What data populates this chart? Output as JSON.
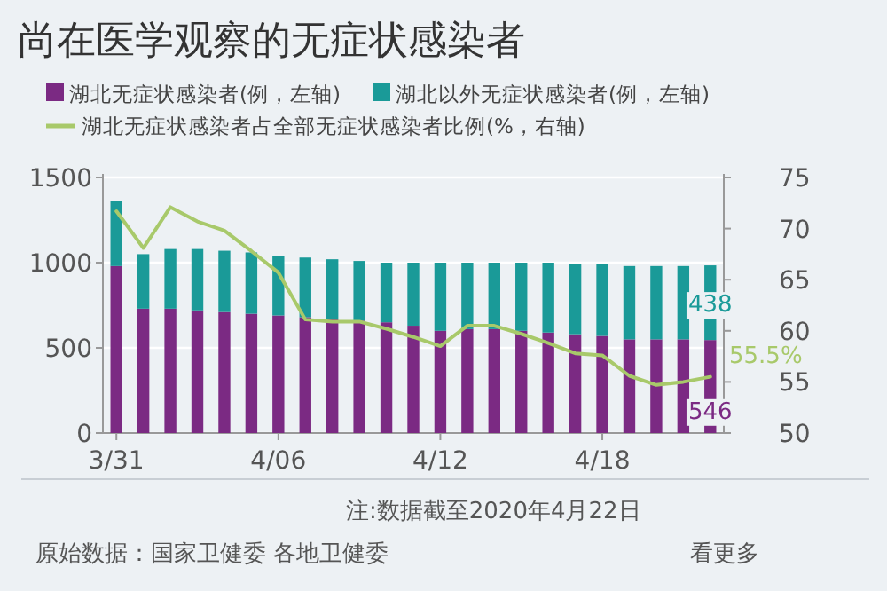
{
  "chart_data": {
    "type": "bar",
    "title": "尚在医学观察的无症状感染者",
    "stacked": true,
    "categories": [
      "3/31",
      null,
      null,
      null,
      null,
      null,
      "4/06",
      null,
      null,
      null,
      null,
      null,
      "4/12",
      null,
      null,
      null,
      null,
      null,
      "4/18",
      null,
      null,
      null,
      null
    ],
    "series": [
      {
        "name": "湖北无症状感染者(例，左轴)",
        "color": "#7b2a83",
        "values": [
          980,
          730,
          730,
          720,
          710,
          700,
          690,
          680,
          670,
          660,
          650,
          630,
          600,
          610,
          610,
          600,
          590,
          580,
          570,
          550,
          550,
          550,
          546
        ],
        "value_labels": [
          null,
          null,
          null,
          null,
          null,
          null,
          null,
          null,
          null,
          null,
          null,
          null,
          null,
          null,
          null,
          null,
          null,
          null,
          null,
          null,
          null,
          null,
          "546"
        ]
      },
      {
        "name": "湖北以外无症状感染者(例，左轴)",
        "color": "#1a9a98",
        "values": [
          380,
          320,
          350,
          360,
          360,
          360,
          350,
          350,
          350,
          350,
          350,
          370,
          400,
          390,
          390,
          400,
          410,
          410,
          420,
          430,
          430,
          430,
          438
        ],
        "value_labels": [
          null,
          null,
          null,
          null,
          null,
          null,
          null,
          null,
          null,
          null,
          null,
          null,
          null,
          null,
          null,
          null,
          null,
          null,
          null,
          null,
          null,
          null,
          "438"
        ]
      },
      {
        "name": "湖北无症状感染者占全部无症状感染者比例(%，右轴)",
        "color": "#a8c96a",
        "type": "line",
        "axis": "y2",
        "values": [
          71.7,
          68.1,
          72.1,
          70.7,
          69.8,
          67.8,
          65.7,
          61.1,
          60.9,
          60.9,
          60.2,
          59.4,
          58.5,
          60.5,
          60.5,
          59.7,
          58.8,
          57.8,
          57.6,
          55.6,
          54.7,
          55.0,
          55.5
        ],
        "value_labels": [
          null,
          null,
          null,
          null,
          null,
          null,
          null,
          null,
          null,
          null,
          null,
          null,
          null,
          null,
          null,
          null,
          null,
          null,
          null,
          null,
          null,
          null,
          "55.5%"
        ]
      }
    ],
    "ylim": [
      0,
      1500
    ],
    "yticks": [
      0,
      500,
      1000,
      1500
    ],
    "y2lim": [
      50,
      75
    ],
    "y2ticks": [
      50,
      55,
      60,
      65,
      70,
      75
    ],
    "grid": "y",
    "legend": "top",
    "annotations": [
      "注:数据截至2020年4月22日",
      "原始数据：国家卫健委 各地卫健委",
      "看更多"
    ]
  }
}
